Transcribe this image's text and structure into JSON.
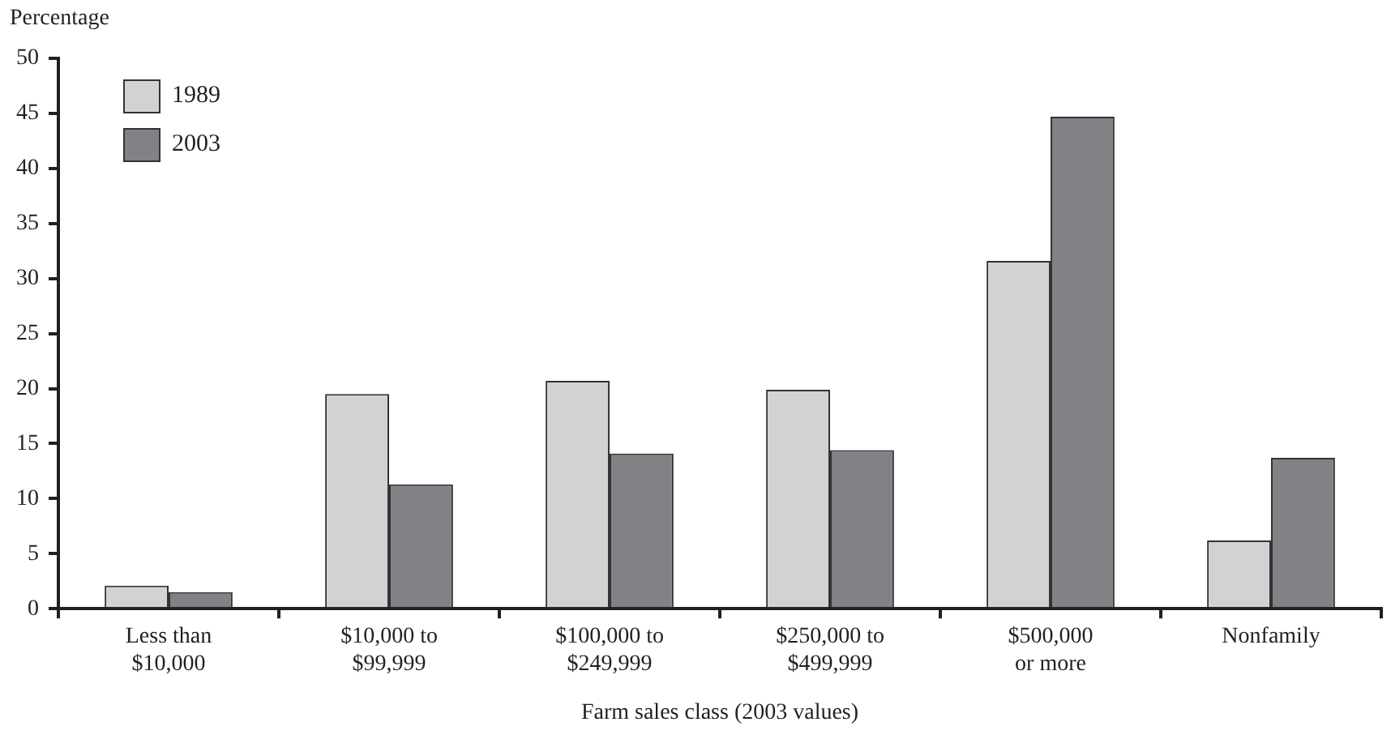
{
  "chart_data": {
    "type": "bar",
    "ylabel": "Percentage",
    "xlabel": "Farm sales class (2003 values)",
    "categories": [
      "Less than\n$10,000",
      "$10,000 to\n$99,999",
      "$100,000 to\n$249,999",
      "$250,000 to\n$499,999",
      "$500,000\nor more",
      "Nonfamily"
    ],
    "series": [
      {
        "name": "1989",
        "color": "#d1d2d4",
        "values": [
          2.1,
          19.5,
          20.7,
          19.9,
          31.6,
          6.2
        ]
      },
      {
        "name": "2003",
        "color": "#818286",
        "values": [
          1.5,
          11.3,
          14.1,
          14.4,
          44.7,
          13.7
        ]
      }
    ],
    "ylim": [
      0,
      50
    ],
    "yticks": [
      0,
      5,
      10,
      15,
      20,
      25,
      30,
      35,
      40,
      45,
      50
    ],
    "grid": false,
    "legend": "top left"
  }
}
